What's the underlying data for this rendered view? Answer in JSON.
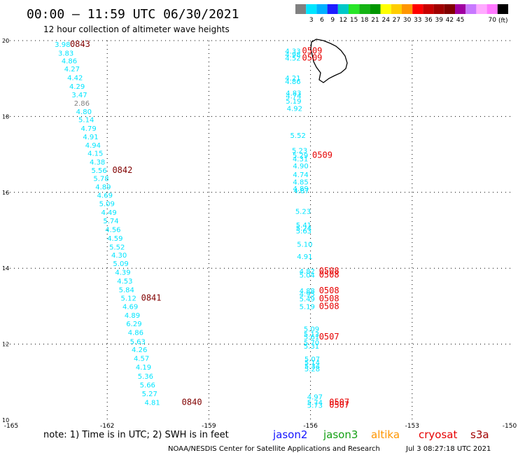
{
  "header": {
    "title": "00:00 – 11:59 UTC 06/30/2021",
    "subtitle": "12 hour collection of altimeter wave heights",
    "unit_label": "(ft)"
  },
  "colorbar": {
    "colors": [
      "#808080",
      "#00e5ff",
      "#00b0ff",
      "#1e1eff",
      "#00c8c8",
      "#28e628",
      "#14b414",
      "#009600",
      "#ffff00",
      "#ffcd00",
      "#ff9600",
      "#ff0000",
      "#c80000",
      "#a00000",
      "#800000",
      "#a000a0",
      "#c878ff",
      "#ffaaff",
      "#ff78ff",
      "#000000"
    ],
    "labels": [
      "3",
      "6",
      "9",
      "12",
      "15",
      "18",
      "21",
      "24",
      "27",
      "30",
      "33",
      "36",
      "39",
      "42",
      "45",
      "70"
    ]
  },
  "footer": {
    "note": "note:  1) Time is in UTC;  2) SWH is in feet",
    "credit": "NOAA/NESDIS Center for Satellite Applications and Research",
    "timestamp": "Jul  3 08:27:18 UTC 2021",
    "satellites": [
      {
        "name": "jason2",
        "color": "#1414ff"
      },
      {
        "name": "jason3",
        "color": "#14a014"
      },
      {
        "name": "altika",
        "color": "#ff9600"
      },
      {
        "name": "cryosat",
        "color": "#e60000"
      },
      {
        "name": "s3a",
        "color": "#a00000"
      }
    ]
  },
  "chart_data": {
    "type": "scatter",
    "xlim": [
      -165,
      -150
    ],
    "ylim": [
      10,
      20
    ],
    "x_ticks": [
      "-165",
      "-162",
      "-159",
      "-156",
      "-153",
      "-150"
    ],
    "y_ticks": [
      "10",
      "12",
      "14",
      "16",
      "18",
      "20"
    ],
    "grid": true,
    "series": [
      {
        "value_color": "#00e5ff",
        "values": [
          {
            "x": -163.55,
            "y": 19.91,
            "v": "3.98"
          },
          {
            "x": -163.45,
            "y": 19.68,
            "v": "3.83"
          },
          {
            "x": -163.35,
            "y": 19.47,
            "v": "4.86"
          },
          {
            "x": -163.27,
            "y": 19.26,
            "v": "4.27"
          },
          {
            "x": -163.18,
            "y": 19.03,
            "v": "4.42"
          },
          {
            "x": -163.12,
            "y": 18.8,
            "v": "4.29"
          },
          {
            "x": -163.05,
            "y": 18.58,
            "v": "3.47"
          },
          {
            "x": -162.98,
            "y": 18.36,
            "v": "2.86"
          },
          {
            "x": -162.92,
            "y": 18.14,
            "v": "4.80"
          },
          {
            "x": -162.85,
            "y": 17.92,
            "v": "5.14"
          },
          {
            "x": -162.78,
            "y": 17.69,
            "v": "4.79"
          },
          {
            "x": -162.72,
            "y": 17.47,
            "v": "4.91"
          },
          {
            "x": -162.65,
            "y": 17.25,
            "v": "4.94"
          },
          {
            "x": -162.58,
            "y": 17.04,
            "v": "4.15"
          },
          {
            "x": -162.52,
            "y": 16.81,
            "v": "4.38"
          },
          {
            "x": -162.47,
            "y": 16.59,
            "v": "5.56"
          },
          {
            "x": -162.41,
            "y": 16.37,
            "v": "5.78"
          },
          {
            "x": -162.35,
            "y": 16.15,
            "v": "4.89"
          },
          {
            "x": -162.3,
            "y": 15.93,
            "v": "4.69"
          },
          {
            "x": -162.24,
            "y": 15.71,
            "v": "5.09"
          },
          {
            "x": -162.18,
            "y": 15.48,
            "v": "4.49"
          },
          {
            "x": -162.12,
            "y": 15.26,
            "v": "5.74"
          },
          {
            "x": -162.06,
            "y": 15.03,
            "v": "4.56"
          },
          {
            "x": -162.0,
            "y": 14.8,
            "v": "4.59"
          },
          {
            "x": -161.94,
            "y": 14.57,
            "v": "5.52"
          },
          {
            "x": -161.88,
            "y": 14.35,
            "v": "4.30"
          },
          {
            "x": -161.83,
            "y": 14.13,
            "v": "5.09"
          },
          {
            "x": -161.77,
            "y": 13.9,
            "v": "4.39"
          },
          {
            "x": -161.71,
            "y": 13.67,
            "v": "4.53"
          },
          {
            "x": -161.66,
            "y": 13.44,
            "v": "5.84"
          },
          {
            "x": -161.6,
            "y": 13.22,
            "v": "5.12"
          },
          {
            "x": -161.55,
            "y": 13.0,
            "v": "4.69"
          },
          {
            "x": -161.49,
            "y": 12.77,
            "v": "4.89"
          },
          {
            "x": -161.44,
            "y": 12.55,
            "v": "6.29"
          },
          {
            "x": -161.39,
            "y": 12.32,
            "v": "4.86"
          },
          {
            "x": -161.33,
            "y": 12.08,
            "v": "5.63"
          },
          {
            "x": -161.28,
            "y": 11.86,
            "v": "4.26"
          },
          {
            "x": -161.22,
            "y": 11.63,
            "v": "4.57"
          },
          {
            "x": -161.16,
            "y": 11.4,
            "v": "4.19"
          },
          {
            "x": -161.1,
            "y": 11.16,
            "v": "5.36"
          },
          {
            "x": -161.04,
            "y": 10.93,
            "v": "5.66"
          },
          {
            "x": -160.98,
            "y": 10.7,
            "v": "5.27"
          },
          {
            "x": -160.9,
            "y": 10.47,
            "v": "4.81"
          },
          {
            "x": -156.75,
            "y": 19.73,
            "v": "4.33"
          },
          {
            "x": -156.75,
            "y": 19.64,
            "v": "4.98"
          },
          {
            "x": -156.75,
            "y": 19.55,
            "v": "4.52"
          },
          {
            "x": -156.75,
            "y": 19.02,
            "v": "4.21"
          },
          {
            "x": -156.75,
            "y": 18.93,
            "v": "4.86"
          },
          {
            "x": -156.73,
            "y": 18.63,
            "v": "4.83"
          },
          {
            "x": -156.73,
            "y": 18.55,
            "v": "4.74"
          },
          {
            "x": -156.73,
            "y": 18.41,
            "v": "5.19"
          },
          {
            "x": -156.7,
            "y": 18.22,
            "v": "4.92"
          },
          {
            "x": -156.6,
            "y": 17.51,
            "v": "5.52"
          },
          {
            "x": -156.55,
            "y": 17.11,
            "v": "5.23"
          },
          {
            "x": -156.53,
            "y": 16.98,
            "v": "5.29"
          },
          {
            "x": -156.53,
            "y": 16.89,
            "v": "4.31"
          },
          {
            "x": -156.52,
            "y": 16.71,
            "v": "4.90"
          },
          {
            "x": -156.52,
            "y": 16.48,
            "v": "4.74"
          },
          {
            "x": -156.52,
            "y": 16.28,
            "v": "4.85"
          },
          {
            "x": -156.52,
            "y": 16.11,
            "v": "4.89"
          },
          {
            "x": -156.5,
            "y": 16.05,
            "v": "4.87"
          },
          {
            "x": -156.45,
            "y": 15.51,
            "v": "5.23"
          },
          {
            "x": -156.43,
            "y": 15.15,
            "v": "5.41"
          },
          {
            "x": -156.43,
            "y": 15.06,
            "v": "5.24"
          },
          {
            "x": -156.43,
            "y": 14.99,
            "v": "5.63"
          },
          {
            "x": -156.4,
            "y": 14.64,
            "v": "5.10"
          },
          {
            "x": -156.4,
            "y": 14.32,
            "v": "4.91"
          },
          {
            "x": -156.33,
            "y": 13.93,
            "v": "4.82"
          },
          {
            "x": -156.33,
            "y": 13.83,
            "v": "5.04"
          },
          {
            "x": -156.33,
            "y": 13.41,
            "v": "4.88"
          },
          {
            "x": -156.33,
            "y": 13.33,
            "v": "4.95"
          },
          {
            "x": -156.33,
            "y": 13.2,
            "v": "5.49"
          },
          {
            "x": -156.33,
            "y": 13.0,
            "v": "5.19"
          },
          {
            "x": -156.2,
            "y": 12.41,
            "v": "5.09"
          },
          {
            "x": -156.2,
            "y": 12.27,
            "v": "5.13"
          },
          {
            "x": -156.2,
            "y": 12.2,
            "v": "5.61"
          },
          {
            "x": -156.2,
            "y": 12.05,
            "v": "5.70"
          },
          {
            "x": -156.2,
            "y": 11.96,
            "v": "5.31"
          },
          {
            "x": -156.18,
            "y": 11.61,
            "v": "5.07"
          },
          {
            "x": -156.18,
            "y": 11.52,
            "v": "5.14"
          },
          {
            "x": -156.18,
            "y": 11.43,
            "v": "5.34"
          },
          {
            "x": -156.18,
            "y": 11.36,
            "v": "5.28"
          },
          {
            "x": -156.1,
            "y": 10.62,
            "v": "4.97"
          },
          {
            "x": -156.1,
            "y": 10.47,
            "v": "5.74"
          },
          {
            "x": -156.1,
            "y": 10.4,
            "v": "5.73"
          }
        ]
      },
      {
        "satellite": "s3a",
        "value_color": "#800000",
        "labels": [
          {
            "x": -163.1,
            "y": 19.91,
            "t": "0843"
          },
          {
            "x": -161.85,
            "y": 16.59,
            "t": "0842"
          },
          {
            "x": -161.0,
            "y": 13.22,
            "t": "0841"
          },
          {
            "x": -159.8,
            "y": 10.47,
            "t": "0840"
          }
        ]
      },
      {
        "satellite": "cryosat",
        "value_color": "#e60000",
        "labels": [
          {
            "x": -156.25,
            "y": 19.73,
            "t": "0509"
          },
          {
            "x": -156.25,
            "y": 19.55,
            "t": "0509"
          },
          {
            "x": -155.95,
            "y": 16.98,
            "t": "0509"
          },
          {
            "x": -155.75,
            "y": 13.93,
            "t": "0508"
          },
          {
            "x": -155.75,
            "y": 13.83,
            "t": "0508"
          },
          {
            "x": -155.75,
            "y": 13.41,
            "t": "0508"
          },
          {
            "x": -155.75,
            "y": 13.2,
            "t": "0508"
          },
          {
            "x": -155.75,
            "y": 13.0,
            "t": "0508"
          },
          {
            "x": -155.75,
            "y": 12.2,
            "t": "0507"
          },
          {
            "x": -155.45,
            "y": 10.47,
            "t": "0507"
          },
          {
            "x": -155.45,
            "y": 10.4,
            "t": "0507"
          }
        ]
      }
    ]
  }
}
